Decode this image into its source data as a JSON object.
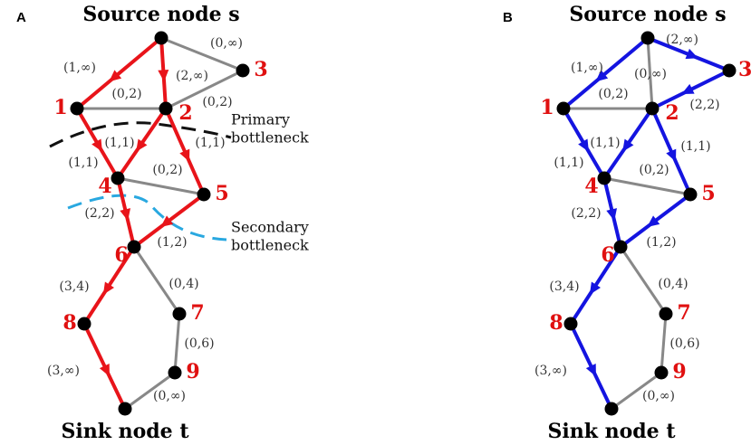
{
  "panels": [
    {
      "letter": "A",
      "source": "Source node s",
      "sink": "Sink node t",
      "nodes": [
        "1",
        "2",
        "3",
        "4",
        "5",
        "6",
        "7",
        "8",
        "9"
      ],
      "edges": [
        "(1,∞)",
        "(2,∞)",
        "(0,∞)",
        "(0,2)",
        "(0,2)",
        "(1,1)",
        "(1,1)",
        "(1,1)",
        "(0,2)",
        "(2,2)",
        "(1,2)",
        "(3,4)",
        "(0,4)",
        "(0,6)",
        "(3,∞)",
        "(0,∞)"
      ],
      "annotations": [
        [
          "Primary",
          "bottleneck"
        ],
        [
          "Secondary",
          "bottleneck"
        ]
      ]
    },
    {
      "letter": "B",
      "source": "Source node s",
      "sink": "Sink node t",
      "nodes": [
        "1",
        "2",
        "3",
        "4",
        "5",
        "6",
        "7",
        "8",
        "9"
      ],
      "edges": [
        "(1,∞)",
        "(2,∞)",
        "(0,∞)",
        "(0,2)",
        "(2,2)",
        "(1,1)",
        "(1,1)",
        "(1,1)",
        "(0,2)",
        "(2,2)",
        "(1,2)",
        "(3,4)",
        "(0,4)",
        "(0,6)",
        "(3,∞)",
        "(0,∞)"
      ],
      "annotations": []
    }
  ]
}
